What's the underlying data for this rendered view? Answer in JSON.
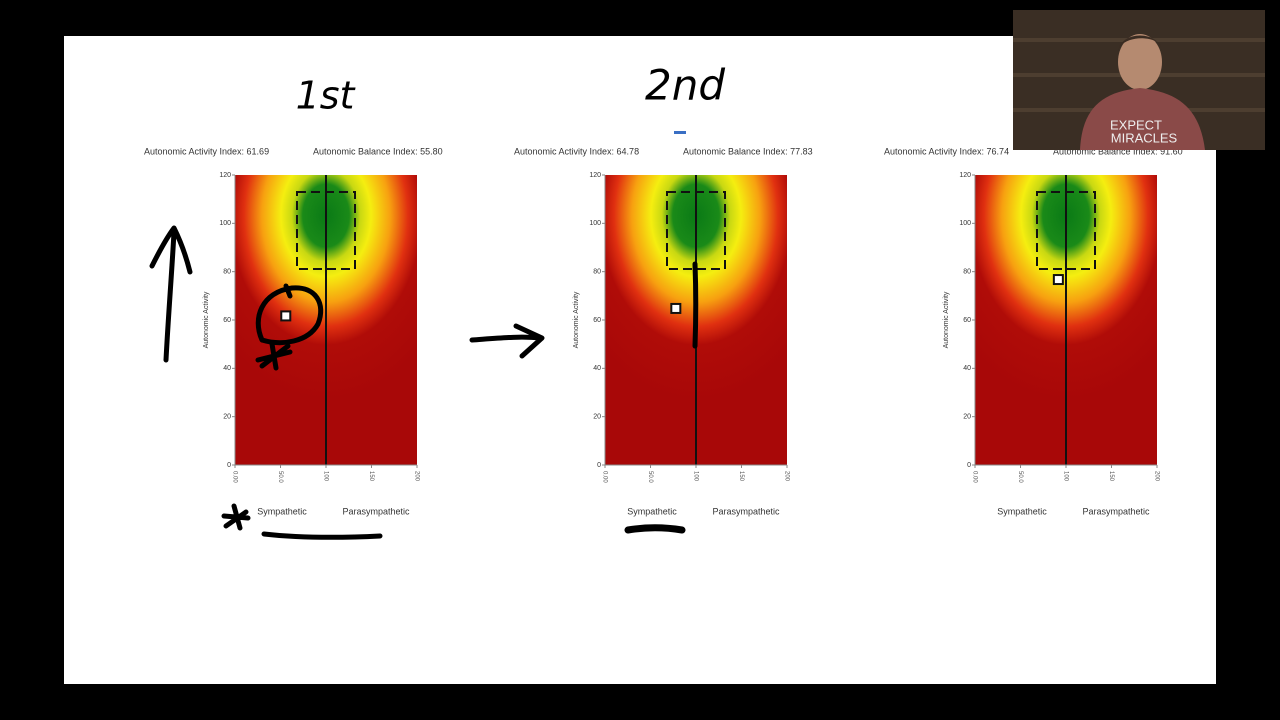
{
  "chart_data": [
    {
      "type": "scatter",
      "title_left": "Autonomic Activity Index: 61.69",
      "title_right": "Autonomic Balance Index: 55.80",
      "y_label": "Autonomic Activity",
      "x_label_left": "Sympathetic",
      "x_label_right": "Parasympathetic",
      "x": [
        55.8
      ],
      "y": [
        61.69
      ],
      "xlim": [
        0,
        200
      ],
      "ylim": [
        0,
        120
      ],
      "xticks": [
        {
          "value": 0,
          "label": "0.00"
        },
        {
          "value": 50,
          "label": "50.0"
        },
        100,
        150,
        200
      ],
      "yticks": [
        0,
        20,
        40,
        60,
        80,
        100,
        120
      ]
    },
    {
      "type": "scatter",
      "title_left": "Autonomic Activity Index: 64.78",
      "title_right": "Autonomic Balance Index: 77.83",
      "y_label": "Autonomic Activity",
      "x_label_left": "Sympathetic",
      "x_label_right": "Parasympathetic",
      "x": [
        77.83
      ],
      "y": [
        64.78
      ],
      "xlim": [
        0,
        200
      ],
      "ylim": [
        0,
        120
      ],
      "xticks": [
        {
          "value": 0,
          "label": "0.00"
        },
        {
          "value": 50,
          "label": "50.0"
        },
        100,
        150,
        200
      ],
      "yticks": [
        0,
        20,
        40,
        60,
        80,
        100,
        120
      ]
    },
    {
      "type": "scatter",
      "title_left": "Autonomic Activity Index: 76.74",
      "title_right": "Autonomic Balance Index: 91.60",
      "y_label": "Autonomic Activity",
      "x_label_left": "Sympathetic",
      "x_label_right": "Parasympathetic",
      "x": [
        91.6
      ],
      "y": [
        76.74
      ],
      "xlim": [
        0,
        200
      ],
      "ylim": [
        0,
        120
      ],
      "xticks": [
        {
          "value": 0,
          "label": "0.00"
        },
        {
          "value": 50,
          "label": "50.0"
        },
        100,
        150,
        200
      ],
      "yticks": [
        0,
        20,
        40,
        60,
        80,
        100,
        120
      ]
    }
  ],
  "annotations": [
    "1st",
    "2nd"
  ],
  "webcam": {
    "shirt_text": [
      "EXPECT",
      "MIRACLES"
    ]
  }
}
